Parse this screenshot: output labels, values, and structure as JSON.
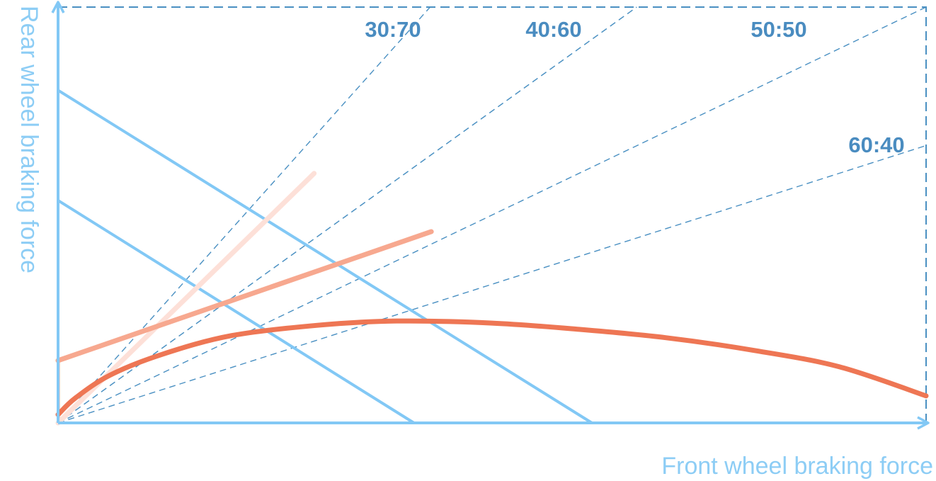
{
  "chart_data": {
    "type": "line",
    "title": "",
    "xlabel": "Front wheel braking force",
    "ylabel": "Rear wheel braking force",
    "xlim": [
      0,
      1
    ],
    "ylim": [
      0,
      1
    ],
    "grid": false,
    "distribution_lines": [
      {
        "label": "30:70",
        "slope": 2.333
      },
      {
        "label": "40:60",
        "slope": 1.5
      },
      {
        "label": "50:50",
        "slope": 1.0
      },
      {
        "label": "60:40",
        "slope": 0.667
      }
    ],
    "constant_deceleration_lines": [
      {
        "x_intercept": 0.41,
        "y_intercept": 0.535
      },
      {
        "x_intercept": 0.615,
        "y_intercept": 0.8
      }
    ],
    "series": [
      {
        "color": "#fde0d8",
        "points": [
          [
            0,
            0
          ],
          [
            0.295,
            0.6
          ]
        ]
      },
      {
        "color": "#f7a88f",
        "points": [
          [
            0,
            0.15
          ],
          [
            0.43,
            0.46
          ]
        ]
      },
      {
        "color": "#ee7654",
        "points": [
          [
            0,
            0.02
          ],
          [
            0.02,
            0.06
          ],
          [
            0.06,
            0.115
          ],
          [
            0.12,
            0.165
          ],
          [
            0.2,
            0.21
          ],
          [
            0.3,
            0.235
          ],
          [
            0.39,
            0.245
          ],
          [
            0.5,
            0.24
          ],
          [
            0.6,
            0.225
          ],
          [
            0.7,
            0.205
          ],
          [
            0.8,
            0.175
          ],
          [
            0.9,
            0.135
          ],
          [
            1.0,
            0.065
          ]
        ]
      }
    ],
    "colors": {
      "axis": "#82c8f5",
      "guide": "#4a90c2",
      "ratio_text": "#4a8cc0",
      "axis_text": "#8dcdf5"
    }
  }
}
